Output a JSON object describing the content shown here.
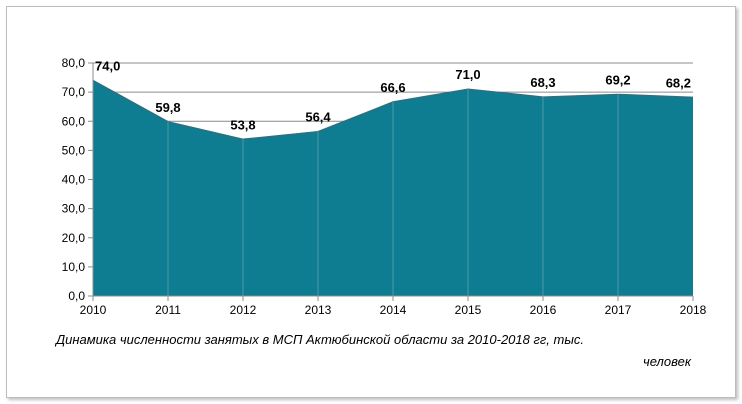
{
  "chart_data": {
    "type": "area",
    "categories": [
      "2010",
      "2011",
      "2012",
      "2013",
      "2014",
      "2015",
      "2016",
      "2017",
      "2018"
    ],
    "values": [
      74.0,
      59.8,
      53.8,
      56.4,
      66.6,
      71.0,
      68.3,
      69.2,
      68.2
    ],
    "value_labels": [
      "74,0",
      "59,8",
      "53,8",
      "56,4",
      "66,6",
      "71,0",
      "68,3",
      "69,2",
      "68,2"
    ],
    "ylim": [
      0,
      80
    ],
    "yticks": [
      "0,0",
      "10,0",
      "20,0",
      "30,0",
      "40,0",
      "50,0",
      "60,0",
      "70,0",
      "80,0"
    ],
    "grid": true,
    "title": "",
    "xlabel": "",
    "ylabel": "",
    "fill_color": "#0e7c91",
    "line_color": "#2f6f7f"
  },
  "caption": {
    "line1": "Динамика  численности занятых в МСП  Актюбинской области за 2010-2018  гг, тыс.",
    "line2": "человек"
  }
}
